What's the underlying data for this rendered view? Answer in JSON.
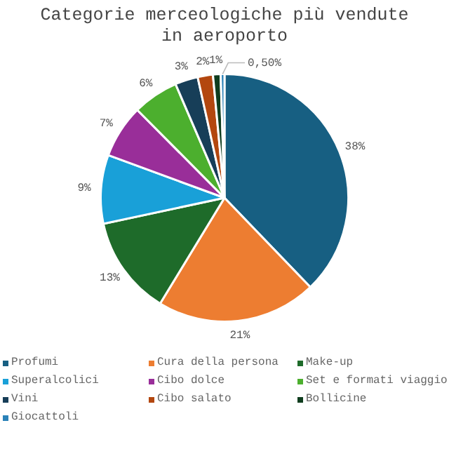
{
  "chart_data": {
    "type": "pie",
    "title": "Categorie merceologiche più vendute in aeroporto",
    "categories": [
      "Profumi",
      "Cura della persona",
      "Make-up",
      "Superalcolici",
      "Cibo dolce",
      "Set e formati viaggio",
      "Vini",
      "Cibo salato",
      "Bollicine",
      "Giocattoli"
    ],
    "values": [
      38,
      21,
      13,
      9,
      7,
      6,
      3,
      2,
      1,
      0.5
    ],
    "colors": [
      "#175f82",
      "#ed7d31",
      "#1e6b2a",
      "#19a0d8",
      "#992e99",
      "#4caf2e",
      "#173e58",
      "#b3470f",
      "#0f3d1e",
      "#2b82b8"
    ],
    "value_labels": [
      "38%",
      "21%",
      "13%",
      "9%",
      "7%",
      "6%",
      "3%",
      "2%",
      "1%",
      "0,50%"
    ],
    "legend": "bottom"
  }
}
